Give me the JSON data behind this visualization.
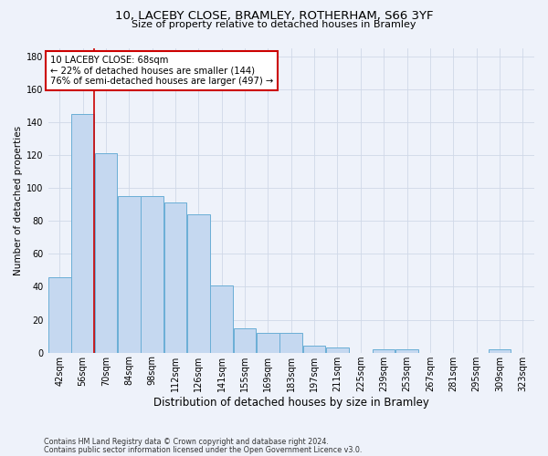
{
  "title_line1": "10, LACEBY CLOSE, BRAMLEY, ROTHERHAM, S66 3YF",
  "title_line2": "Size of property relative to detached houses in Bramley",
  "xlabel": "Distribution of detached houses by size in Bramley",
  "ylabel": "Number of detached properties",
  "footer_line1": "Contains HM Land Registry data © Crown copyright and database right 2024.",
  "footer_line2": "Contains public sector information licensed under the Open Government Licence v3.0.",
  "bar_labels": [
    "42sqm",
    "56sqm",
    "70sqm",
    "84sqm",
    "98sqm",
    "112sqm",
    "126sqm",
    "141sqm",
    "155sqm",
    "169sqm",
    "183sqm",
    "197sqm",
    "211sqm",
    "225sqm",
    "239sqm",
    "253sqm",
    "267sqm",
    "281sqm",
    "295sqm",
    "309sqm",
    "323sqm"
  ],
  "bar_values": [
    46,
    145,
    121,
    95,
    95,
    91,
    84,
    41,
    15,
    12,
    12,
    4,
    3,
    0,
    2,
    2,
    0,
    0,
    0,
    2,
    0
  ],
  "bar_color": "#c5d8f0",
  "bar_edge_color": "#6aaed6",
  "grid_color": "#d0d8e8",
  "annotation_text": "10 LACEBY CLOSE: 68sqm\n← 22% of detached houses are smaller (144)\n76% of semi-detached houses are larger (497) →",
  "annotation_box_color": "#ffffff",
  "annotation_box_edge_color": "#cc0000",
  "red_line_x": 1.5,
  "ylim": [
    0,
    185
  ],
  "yticks": [
    0,
    20,
    40,
    60,
    80,
    100,
    120,
    140,
    160,
    180
  ],
  "background_color": "#eef2fa",
  "title1_fontsize": 9.5,
  "title2_fontsize": 8.0,
  "ylabel_fontsize": 7.5,
  "xlabel_fontsize": 8.5,
  "tick_fontsize": 7.0,
  "footer_fontsize": 5.8
}
